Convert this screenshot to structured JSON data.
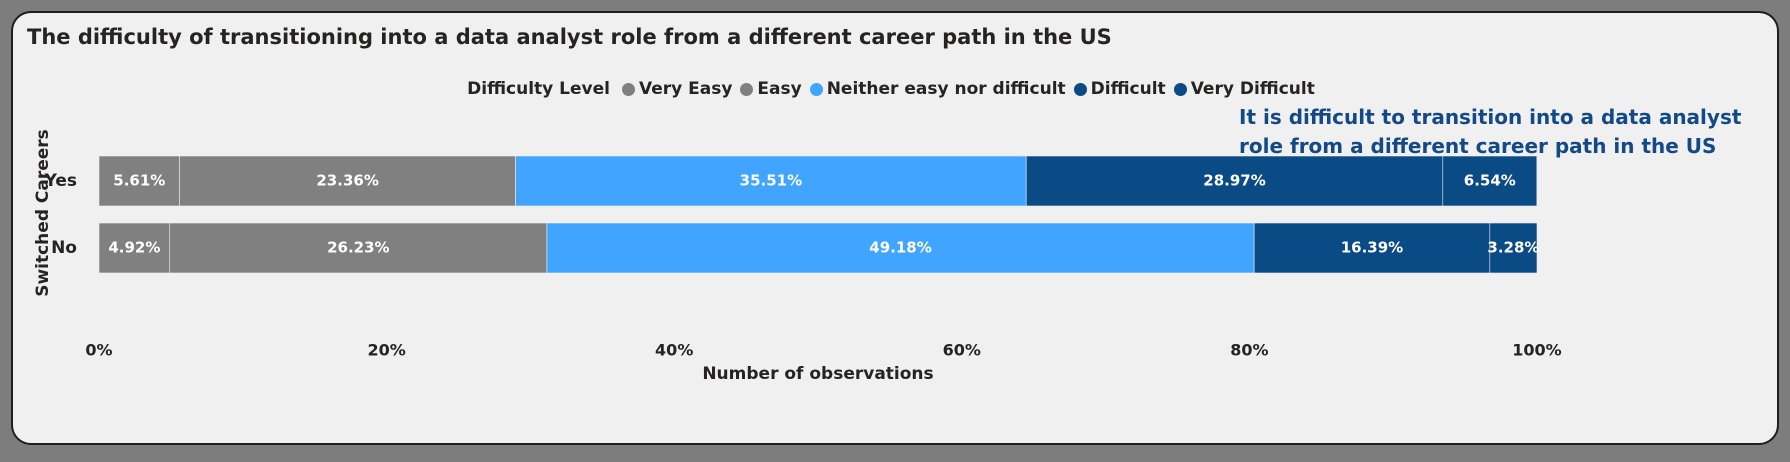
{
  "title": "The difficulty of transitioning into a data analyst role from a different career path in the US",
  "annotation": "It is difficult to transition into a data analyst role from a different career path in the US",
  "chart_data": {
    "type": "bar",
    "orientation": "horizontal",
    "stacked": "100%",
    "legend_title": "Difficulty Level",
    "legend_position": "top-center",
    "xlabel": "Number of observations",
    "ylabel": "Switched Careers",
    "xlim": [
      0,
      100
    ],
    "x_ticks": [
      "0%",
      "20%",
      "40%",
      "60%",
      "80%",
      "100%"
    ],
    "categories": [
      "Yes",
      "No"
    ],
    "series": [
      {
        "name": "Very Easy",
        "color": "#808080",
        "values": [
          5.61,
          4.92
        ],
        "labels": [
          "5.61%",
          "4.92%"
        ]
      },
      {
        "name": "Easy",
        "color": "#808080",
        "values": [
          23.36,
          26.23
        ],
        "labels": [
          "23.36%",
          "26.23%"
        ]
      },
      {
        "name": "Neither easy nor difficult",
        "color": "#41a5ff",
        "values": [
          35.51,
          49.18
        ],
        "labels": [
          "35.51%",
          "49.18%"
        ]
      },
      {
        "name": "Difficult",
        "color": "#0a4a85",
        "values": [
          28.97,
          16.39
        ],
        "labels": [
          "28.97%",
          "16.39%"
        ]
      },
      {
        "name": "Very Difficult",
        "color": "#0a4a85",
        "values": [
          6.54,
          3.28
        ],
        "labels": [
          "6.54%",
          "3.28%"
        ]
      }
    ],
    "grid": false
  }
}
